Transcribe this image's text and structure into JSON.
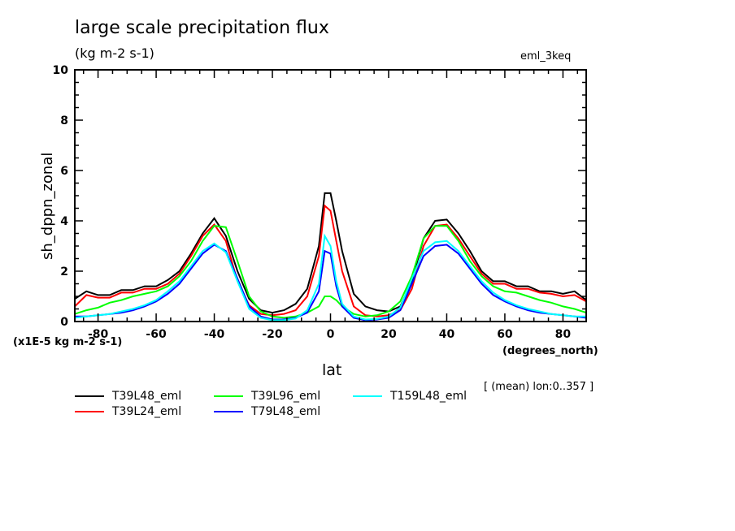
{
  "header": {
    "title": "large scale precipitation flux",
    "units": "(kg m-2 s-1)",
    "experiment": "eml_3keq"
  },
  "notes": {
    "scale": "(x1E-5 kg m-2 s-1)",
    "x_units": "(degrees_north)",
    "mean": "[ (mean) lon:0..357 ]"
  },
  "chart_data": {
    "type": "line",
    "title": "large scale precipitation flux",
    "subtitle": "(kg m-2 s-1)",
    "xlabel": "lat",
    "ylabel": "sh_dppn_zonal",
    "xlim": [
      -88,
      88
    ],
    "ylim": [
      0,
      10
    ],
    "xticks": [
      -80,
      -60,
      -40,
      -20,
      0,
      20,
      40,
      60,
      80
    ],
    "xtick_labels": [
      "-80",
      "-60",
      "-40",
      "-20",
      "0",
      "20",
      "40",
      "60",
      "80"
    ],
    "yticks": [
      0,
      2,
      4,
      6,
      8,
      10
    ],
    "ytick_labels": [
      "0",
      "2",
      "4",
      "6",
      "8",
      "10"
    ],
    "grid": false,
    "legend_position": "bottom",
    "x": [
      -88,
      -84,
      -80,
      -76,
      -72,
      -68,
      -64,
      -60,
      -56,
      -52,
      -48,
      -44,
      -40,
      -36,
      -32,
      -28,
      -24,
      -20,
      -16,
      -12,
      -8,
      -4,
      -2,
      0,
      2,
      4,
      8,
      12,
      16,
      20,
      24,
      28,
      32,
      36,
      40,
      44,
      48,
      52,
      56,
      60,
      64,
      68,
      72,
      76,
      80,
      84,
      88
    ],
    "series": [
      {
        "name": "T39L48_eml",
        "color": "#000000",
        "values": [
          0.9,
          1.2,
          1.05,
          1.05,
          1.25,
          1.25,
          1.4,
          1.4,
          1.65,
          2.0,
          2.7,
          3.5,
          4.1,
          3.4,
          2.0,
          0.9,
          0.45,
          0.35,
          0.45,
          0.7,
          1.3,
          3.0,
          5.1,
          5.1,
          4.0,
          2.8,
          1.1,
          0.6,
          0.45,
          0.4,
          0.6,
          1.6,
          3.3,
          4.0,
          4.05,
          3.5,
          2.8,
          2.0,
          1.6,
          1.6,
          1.4,
          1.4,
          1.2,
          1.2,
          1.1,
          1.2,
          0.85
        ]
      },
      {
        "name": "T39L24_eml",
        "color": "#ff0000",
        "values": [
          0.6,
          1.05,
          0.95,
          0.95,
          1.15,
          1.15,
          1.3,
          1.3,
          1.5,
          1.9,
          2.6,
          3.4,
          3.85,
          3.2,
          1.6,
          0.65,
          0.3,
          0.25,
          0.3,
          0.45,
          1.0,
          2.6,
          4.6,
          4.4,
          3.2,
          2.0,
          0.6,
          0.25,
          0.2,
          0.25,
          0.45,
          1.3,
          3.0,
          3.8,
          3.85,
          3.3,
          2.6,
          1.9,
          1.5,
          1.5,
          1.3,
          1.3,
          1.15,
          1.1,
          1.0,
          1.05,
          0.8
        ]
      },
      {
        "name": "T39L96_eml",
        "color": "#00ff00",
        "values": [
          0.3,
          0.45,
          0.55,
          0.75,
          0.85,
          1.0,
          1.1,
          1.2,
          1.4,
          1.8,
          2.4,
          3.2,
          3.8,
          3.75,
          2.4,
          1.0,
          0.4,
          0.2,
          0.15,
          0.2,
          0.35,
          0.6,
          1.0,
          1.0,
          0.85,
          0.6,
          0.3,
          0.2,
          0.25,
          0.4,
          0.8,
          1.8,
          3.3,
          3.8,
          3.8,
          3.2,
          2.4,
          1.8,
          1.4,
          1.2,
          1.15,
          1.0,
          0.85,
          0.75,
          0.6,
          0.5,
          0.35
        ]
      },
      {
        "name": "T79L48_eml",
        "color": "#0000ff",
        "values": [
          0.2,
          0.2,
          0.25,
          0.3,
          0.35,
          0.45,
          0.6,
          0.8,
          1.1,
          1.5,
          2.1,
          2.7,
          3.05,
          2.8,
          1.7,
          0.6,
          0.2,
          0.08,
          0.08,
          0.15,
          0.35,
          1.2,
          2.8,
          2.7,
          1.4,
          0.6,
          0.15,
          0.05,
          0.08,
          0.15,
          0.45,
          1.5,
          2.6,
          3.0,
          3.05,
          2.7,
          2.1,
          1.5,
          1.05,
          0.8,
          0.6,
          0.45,
          0.35,
          0.3,
          0.25,
          0.2,
          0.15
        ]
      },
      {
        "name": "T159L48_eml",
        "color": "#00ffff",
        "values": [
          0.15,
          0.2,
          0.25,
          0.3,
          0.4,
          0.5,
          0.65,
          0.85,
          1.2,
          1.6,
          2.2,
          2.8,
          3.1,
          2.75,
          1.6,
          0.5,
          0.15,
          0.05,
          0.05,
          0.12,
          0.45,
          1.5,
          3.4,
          3.0,
          1.6,
          0.7,
          0.2,
          0.08,
          0.1,
          0.2,
          0.55,
          1.7,
          2.8,
          3.15,
          3.2,
          2.8,
          2.2,
          1.6,
          1.15,
          0.85,
          0.65,
          0.5,
          0.4,
          0.3,
          0.25,
          0.2,
          0.2
        ]
      }
    ]
  }
}
